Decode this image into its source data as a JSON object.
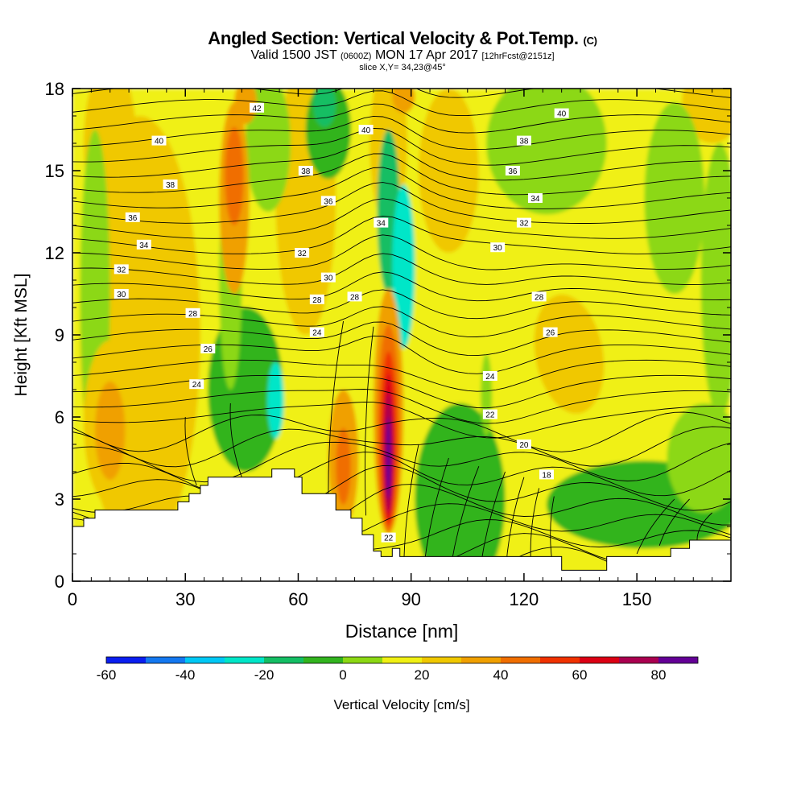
{
  "title": {
    "main": "Angled Section: Vertical Velocity & Pot.Temp.",
    "units_tag": "(C)",
    "valid_prefix": "Valid 1500 JST",
    "valid_utc": "(0600Z)",
    "valid_date": "MON 17 Apr 2017",
    "forecast": "[12hrFcst@2151z]",
    "slice": "slice X,Y= 34,23@45°"
  },
  "chart_data": {
    "type": "heatmap",
    "xlabel": "Distance [nm]",
    "ylabel": "Height [Kft MSL]",
    "xlim": [
      0,
      175
    ],
    "ylim": [
      0,
      18
    ],
    "x_ticks": [
      0,
      30,
      60,
      90,
      120,
      150
    ],
    "y_ticks": [
      0,
      3,
      6,
      9,
      12,
      15,
      18
    ],
    "fill_field": "Vertical Velocity",
    "colorbar": {
      "label": "Vertical Velocity [cm/s]",
      "ticks": [
        -60,
        -40,
        -20,
        0,
        20,
        40,
        60,
        80
      ],
      "bounds": [
        -60,
        -50,
        -40,
        -30,
        -20,
        -10,
        0,
        10,
        20,
        30,
        40,
        50,
        60,
        70,
        80,
        90
      ],
      "colors": [
        "#0a1ef0",
        "#1478f0",
        "#00c8f5",
        "#00e6c8",
        "#14be64",
        "#32b41e",
        "#8cd814",
        "#f0f014",
        "#f0c800",
        "#f0a000",
        "#f06e00",
        "#f03200",
        "#dc0014",
        "#aa0050",
        "#640096"
      ]
    },
    "vertical_velocity_features": [
      {
        "feature": "updraft max",
        "x_nm": 84,
        "height_kft": 4.5,
        "value_cm_s": 80
      },
      {
        "feature": "updraft band",
        "x_nm": 81,
        "height_kft": 6.5,
        "value_cm_s": 45
      },
      {
        "feature": "downdraft",
        "x_nm": 90,
        "height_kft": 11,
        "value_cm_s": -25
      },
      {
        "feature": "downdraft",
        "x_nm": 55,
        "height_kft": 6.8,
        "value_cm_s": -25
      },
      {
        "feature": "updraft",
        "x_nm": 42,
        "height_kft": 14,
        "value_cm_s": 35
      },
      {
        "feature": "updraft",
        "x_nm": 10,
        "height_kft": 5.5,
        "value_cm_s": 30
      },
      {
        "feature": "updraft",
        "x_nm": 70,
        "height_kft": 4,
        "value_cm_s": 35
      },
      {
        "feature": "updraft",
        "x_nm": 132,
        "height_kft": 8,
        "value_cm_s": 15
      }
    ],
    "contour_field": "Potential Temperature (C)",
    "contour_labels": [
      {
        "text": "42",
        "x": 49,
        "y": 17.3
      },
      {
        "text": "40",
        "x": 23,
        "y": 16.1
      },
      {
        "text": "40",
        "x": 78,
        "y": 16.5
      },
      {
        "text": "40",
        "x": 130,
        "y": 17.1
      },
      {
        "text": "38",
        "x": 26,
        "y": 14.5
      },
      {
        "text": "38",
        "x": 62,
        "y": 15.0
      },
      {
        "text": "38",
        "x": 120,
        "y": 16.1
      },
      {
        "text": "36",
        "x": 16,
        "y": 13.3
      },
      {
        "text": "36",
        "x": 68,
        "y": 13.9
      },
      {
        "text": "36",
        "x": 117,
        "y": 15.0
      },
      {
        "text": "34",
        "x": 19,
        "y": 12.3
      },
      {
        "text": "34",
        "x": 82,
        "y": 13.1
      },
      {
        "text": "34",
        "x": 123,
        "y": 14.0
      },
      {
        "text": "32",
        "x": 13,
        "y": 11.4
      },
      {
        "text": "32",
        "x": 61,
        "y": 12.0
      },
      {
        "text": "32",
        "x": 120,
        "y": 13.1
      },
      {
        "text": "30",
        "x": 13,
        "y": 10.5
      },
      {
        "text": "30",
        "x": 68,
        "y": 11.1
      },
      {
        "text": "30",
        "x": 113,
        "y": 12.2
      },
      {
        "text": "28",
        "x": 32,
        "y": 9.8
      },
      {
        "text": "28",
        "x": 65,
        "y": 10.3
      },
      {
        "text": "28",
        "x": 75,
        "y": 10.4
      },
      {
        "text": "28",
        "x": 124,
        "y": 10.4
      },
      {
        "text": "26",
        "x": 36,
        "y": 8.5
      },
      {
        "text": "26",
        "x": 127,
        "y": 9.1
      },
      {
        "text": "24",
        "x": 33,
        "y": 7.2
      },
      {
        "text": "24",
        "x": 65,
        "y": 9.1
      },
      {
        "text": "24",
        "x": 111,
        "y": 7.5
      },
      {
        "text": "22",
        "x": 111,
        "y": 6.1
      },
      {
        "text": "22",
        "x": 84,
        "y": 1.6
      },
      {
        "text": "20",
        "x": 120,
        "y": 5.0
      },
      {
        "text": "18",
        "x": 126,
        "y": 3.9
      }
    ],
    "terrain_profile_kft": [
      [
        0,
        2
      ],
      [
        3,
        2
      ],
      [
        3,
        2.3
      ],
      [
        6,
        2.3
      ],
      [
        6,
        2.6
      ],
      [
        28,
        2.6
      ],
      [
        28,
        2.9
      ],
      [
        31,
        2.9
      ],
      [
        31,
        3.2
      ],
      [
        34,
        3.2
      ],
      [
        34,
        3.5
      ],
      [
        36,
        3.5
      ],
      [
        36,
        3.8
      ],
      [
        53,
        3.8
      ],
      [
        53,
        4.1
      ],
      [
        59,
        4.1
      ],
      [
        59,
        3.8
      ],
      [
        61,
        3.8
      ],
      [
        61,
        3.2
      ],
      [
        70,
        3.2
      ],
      [
        70,
        2.6
      ],
      [
        74,
        2.6
      ],
      [
        74,
        2.3
      ],
      [
        77,
        2.3
      ],
      [
        77,
        1.7
      ],
      [
        80,
        1.7
      ],
      [
        80,
        1.1
      ],
      [
        82,
        1.1
      ],
      [
        82,
        0.9
      ],
      [
        85,
        0.9
      ],
      [
        85,
        1.2
      ],
      [
        87,
        1.2
      ],
      [
        87,
        0.9
      ],
      [
        130,
        0.9
      ],
      [
        130,
        0.4
      ],
      [
        142,
        0.4
      ],
      [
        142,
        0.9
      ],
      [
        159,
        0.9
      ],
      [
        159,
        1.2
      ],
      [
        164,
        1.2
      ],
      [
        164,
        1.5
      ],
      [
        175,
        1.5
      ]
    ]
  }
}
